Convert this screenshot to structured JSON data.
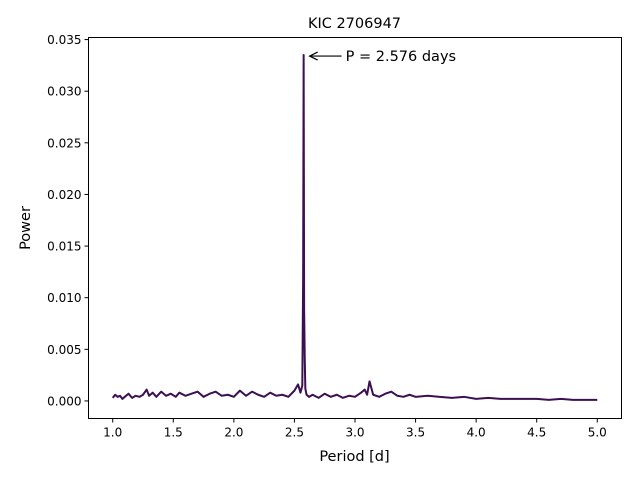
{
  "chart_data": {
    "type": "line",
    "title": "KIC 2706947",
    "xlabel": "Period [d]",
    "ylabel": "Power",
    "xlim": [
      0.8,
      5.2
    ],
    "ylim": [
      -0.0017,
      0.0352
    ],
    "xticks": [
      1.0,
      1.5,
      2.0,
      2.5,
      3.0,
      3.5,
      4.0,
      4.5,
      5.0
    ],
    "xtick_labels": [
      "1.0",
      "1.5",
      "2.0",
      "2.5",
      "3.0",
      "3.5",
      "4.0",
      "4.5",
      "5.0"
    ],
    "yticks": [
      0.0,
      0.005,
      0.01,
      0.015,
      0.02,
      0.025,
      0.03,
      0.035
    ],
    "ytick_labels": [
      "0.000",
      "0.005",
      "0.010",
      "0.015",
      "0.020",
      "0.025",
      "0.030",
      "0.035"
    ],
    "grid": false,
    "line_color": "#3b0f50",
    "series": [
      {
        "x": [
          1.0,
          1.02,
          1.04,
          1.06,
          1.08,
          1.1,
          1.13,
          1.16,
          1.19,
          1.22,
          1.25,
          1.28,
          1.3,
          1.33,
          1.36,
          1.4,
          1.44,
          1.48,
          1.52,
          1.55,
          1.6,
          1.65,
          1.7,
          1.75,
          1.8,
          1.85,
          1.9,
          1.95,
          2.0,
          2.05,
          2.1,
          2.15,
          2.2,
          2.25,
          2.3,
          2.35,
          2.4,
          2.45,
          2.5,
          2.53,
          2.55,
          2.565,
          2.572,
          2.576,
          2.58,
          2.585,
          2.59,
          2.6,
          2.62,
          2.65,
          2.7,
          2.75,
          2.8,
          2.85,
          2.9,
          2.95,
          3.0,
          3.05,
          3.08,
          3.1,
          3.12,
          3.15,
          3.2,
          3.25,
          3.3,
          3.35,
          3.4,
          3.45,
          3.5,
          3.6,
          3.7,
          3.8,
          3.9,
          4.0,
          4.1,
          4.2,
          4.3,
          4.4,
          4.5,
          4.6,
          4.7,
          4.8,
          4.9,
          5.0
        ],
        "y": [
          0.0003,
          0.0006,
          0.0004,
          0.0005,
          0.0002,
          0.0004,
          0.0007,
          0.0003,
          0.0005,
          0.0004,
          0.0006,
          0.0011,
          0.0005,
          0.0008,
          0.0004,
          0.0009,
          0.0005,
          0.0007,
          0.0004,
          0.0008,
          0.0005,
          0.0007,
          0.0009,
          0.0004,
          0.0007,
          0.0009,
          0.0005,
          0.0006,
          0.0004,
          0.001,
          0.0005,
          0.0009,
          0.0006,
          0.0004,
          0.0008,
          0.0005,
          0.0006,
          0.0004,
          0.001,
          0.0016,
          0.0008,
          0.0015,
          0.012,
          0.0335,
          0.009,
          0.0042,
          0.0012,
          0.0006,
          0.0004,
          0.0006,
          0.0003,
          0.0007,
          0.0004,
          0.0006,
          0.0003,
          0.0005,
          0.0004,
          0.0008,
          0.0011,
          0.0006,
          0.0019,
          0.0006,
          0.0004,
          0.0007,
          0.0009,
          0.0005,
          0.0004,
          0.0006,
          0.0004,
          0.0005,
          0.0004,
          0.0003,
          0.0004,
          0.0002,
          0.0003,
          0.0002,
          0.0002,
          0.0002,
          0.0002,
          0.0001,
          0.0002,
          0.0001,
          0.0001,
          0.0001
        ]
      }
    ],
    "annotations": [
      {
        "text": "P = 2.576 days",
        "x": 2.576,
        "y": 0.0334,
        "arrow": true
      }
    ]
  }
}
